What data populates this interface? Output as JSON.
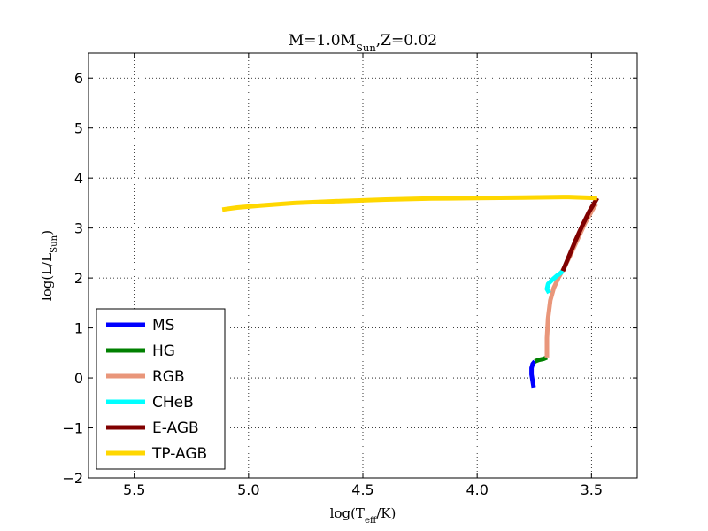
{
  "chart_data": {
    "type": "line",
    "title": "M=1.0M_Sun,Z=0.02",
    "xlabel": "log(T_eff/K)",
    "ylabel": "log(L/L_Sun)",
    "xlim": [
      5.7,
      3.3
    ],
    "ylim": [
      -2,
      6.5
    ],
    "x_inverted": true,
    "grid": true,
    "grid_style": "dotted",
    "legend_position": "lower-left",
    "xticks": [
      5.5,
      5.0,
      4.5,
      4.0,
      3.5
    ],
    "xtick_labels": [
      "5.5",
      "5.0",
      "4.5",
      "4.0",
      "3.5"
    ],
    "yticks": [
      -2,
      -1,
      0,
      1,
      2,
      3,
      4,
      5,
      6
    ],
    "ytick_labels": [
      "−2",
      "−1",
      "0",
      "1",
      "2",
      "3",
      "4",
      "5",
      "6"
    ],
    "series": [
      {
        "name": "MS",
        "color": "#0000ff",
        "x": [
          3.753,
          3.758,
          3.762,
          3.762,
          3.757,
          3.748
        ],
        "y": [
          -0.19,
          -0.05,
          0.07,
          0.2,
          0.28,
          0.33
        ]
      },
      {
        "name": "HG",
        "color": "#008000",
        "x": [
          3.748,
          3.73,
          3.71,
          3.695
        ],
        "y": [
          0.33,
          0.36,
          0.38,
          0.41
        ]
      },
      {
        "name": "RGB",
        "color": "#e9967a",
        "x": [
          3.695,
          3.695,
          3.69,
          3.68,
          3.665,
          3.645,
          3.62,
          3.59,
          3.56,
          3.53,
          3.5,
          3.48
        ],
        "y": [
          0.41,
          0.8,
          1.2,
          1.55,
          1.8,
          2.0,
          2.2,
          2.48,
          2.78,
          3.08,
          3.33,
          3.48
        ]
      },
      {
        "name": "CHeB",
        "color": "#00ffff",
        "x": [
          3.685,
          3.695,
          3.69,
          3.67,
          3.65,
          3.635,
          3.625
        ],
        "y": [
          1.7,
          1.78,
          1.88,
          1.97,
          2.05,
          2.1,
          2.14
        ]
      },
      {
        "name": "E-AGB",
        "color": "#800000",
        "x": [
          3.625,
          3.6,
          3.57,
          3.54,
          3.51,
          3.485,
          3.475
        ],
        "y": [
          2.14,
          2.42,
          2.75,
          3.05,
          3.33,
          3.52,
          3.6
        ]
      },
      {
        "name": "TP-AGB",
        "color": "#ffd700",
        "x": [
          3.475,
          3.6,
          3.8,
          4.0,
          4.2,
          4.4,
          4.6,
          4.8,
          4.95,
          5.05,
          5.115
        ],
        "y": [
          3.6,
          3.62,
          3.61,
          3.6,
          3.59,
          3.57,
          3.54,
          3.5,
          3.45,
          3.41,
          3.37
        ]
      }
    ]
  }
}
